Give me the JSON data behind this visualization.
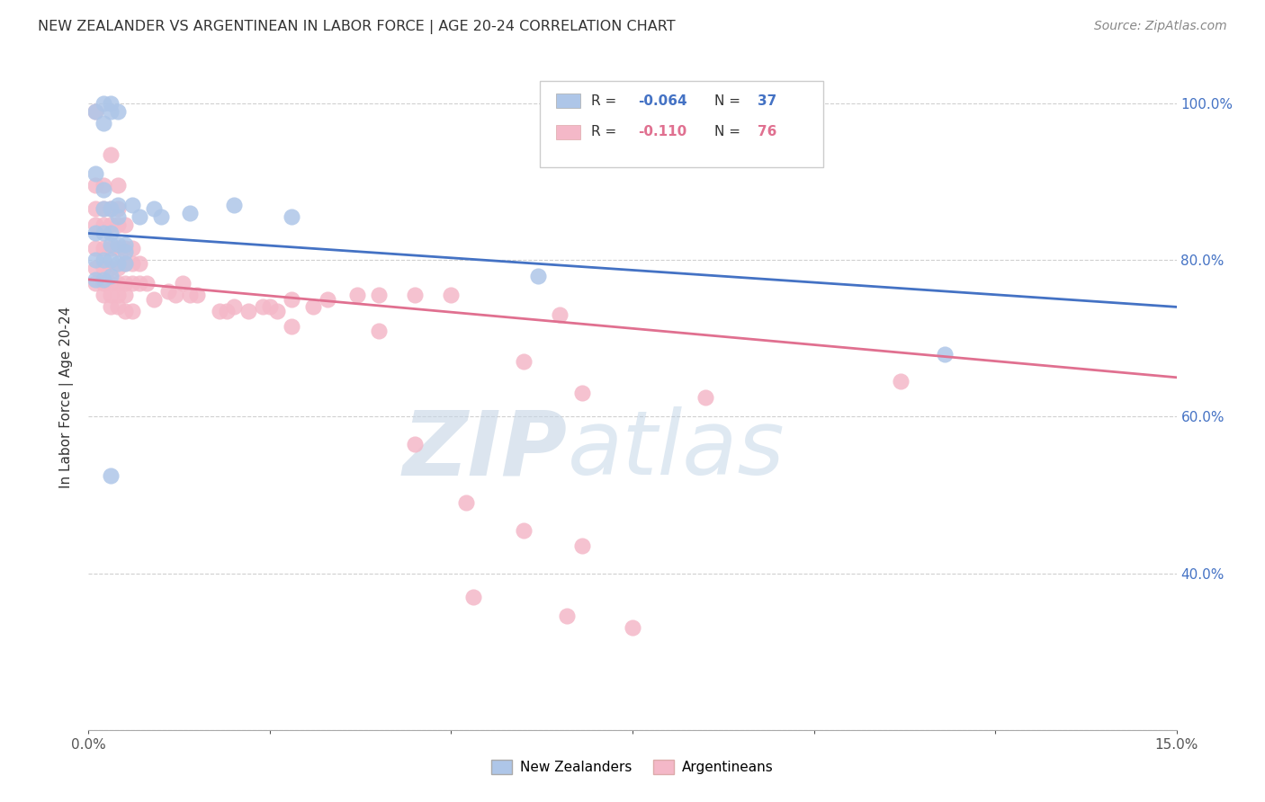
{
  "title": "NEW ZEALANDER VS ARGENTINEAN IN LABOR FORCE | AGE 20-24 CORRELATION CHART",
  "source": "Source: ZipAtlas.com",
  "ylabel": "In Labor Force | Age 20-24",
  "x_min": 0.0,
  "x_max": 0.15,
  "y_min": 0.2,
  "y_max": 1.05,
  "blue_color": "#aec6e8",
  "pink_color": "#f4b8c8",
  "blue_line_color": "#4472c4",
  "pink_line_color": "#e07090",
  "blue_scatter": [
    [
      0.001,
      0.99
    ],
    [
      0.002,
      1.0
    ],
    [
      0.002,
      0.975
    ],
    [
      0.003,
      1.0
    ],
    [
      0.003,
      0.99
    ],
    [
      0.004,
      0.99
    ],
    [
      0.001,
      0.91
    ],
    [
      0.002,
      0.89
    ],
    [
      0.002,
      0.865
    ],
    [
      0.003,
      0.865
    ],
    [
      0.004,
      0.87
    ],
    [
      0.004,
      0.855
    ],
    [
      0.001,
      0.835
    ],
    [
      0.002,
      0.835
    ],
    [
      0.003,
      0.835
    ],
    [
      0.003,
      0.82
    ],
    [
      0.004,
      0.82
    ],
    [
      0.005,
      0.82
    ],
    [
      0.005,
      0.81
    ],
    [
      0.001,
      0.8
    ],
    [
      0.002,
      0.8
    ],
    [
      0.003,
      0.8
    ],
    [
      0.004,
      0.795
    ],
    [
      0.005,
      0.795
    ],
    [
      0.001,
      0.775
    ],
    [
      0.002,
      0.775
    ],
    [
      0.003,
      0.78
    ],
    [
      0.006,
      0.87
    ],
    [
      0.007,
      0.855
    ],
    [
      0.009,
      0.865
    ],
    [
      0.01,
      0.855
    ],
    [
      0.014,
      0.86
    ],
    [
      0.02,
      0.87
    ],
    [
      0.028,
      0.855
    ],
    [
      0.062,
      0.78
    ],
    [
      0.118,
      0.68
    ],
    [
      0.003,
      0.525
    ]
  ],
  "pink_scatter": [
    [
      0.001,
      0.99
    ],
    [
      0.003,
      0.935
    ],
    [
      0.001,
      0.895
    ],
    [
      0.002,
      0.895
    ],
    [
      0.004,
      0.895
    ],
    [
      0.001,
      0.865
    ],
    [
      0.002,
      0.865
    ],
    [
      0.003,
      0.865
    ],
    [
      0.004,
      0.865
    ],
    [
      0.001,
      0.845
    ],
    [
      0.002,
      0.845
    ],
    [
      0.003,
      0.845
    ],
    [
      0.004,
      0.845
    ],
    [
      0.005,
      0.845
    ],
    [
      0.001,
      0.815
    ],
    [
      0.002,
      0.815
    ],
    [
      0.003,
      0.815
    ],
    [
      0.004,
      0.815
    ],
    [
      0.005,
      0.815
    ],
    [
      0.006,
      0.815
    ],
    [
      0.001,
      0.79
    ],
    [
      0.002,
      0.79
    ],
    [
      0.003,
      0.79
    ],
    [
      0.004,
      0.79
    ],
    [
      0.005,
      0.795
    ],
    [
      0.006,
      0.795
    ],
    [
      0.007,
      0.795
    ],
    [
      0.001,
      0.77
    ],
    [
      0.002,
      0.77
    ],
    [
      0.003,
      0.77
    ],
    [
      0.004,
      0.77
    ],
    [
      0.005,
      0.77
    ],
    [
      0.006,
      0.77
    ],
    [
      0.007,
      0.77
    ],
    [
      0.008,
      0.77
    ],
    [
      0.002,
      0.755
    ],
    [
      0.003,
      0.755
    ],
    [
      0.004,
      0.755
    ],
    [
      0.005,
      0.755
    ],
    [
      0.003,
      0.74
    ],
    [
      0.004,
      0.74
    ],
    [
      0.005,
      0.735
    ],
    [
      0.006,
      0.735
    ],
    [
      0.009,
      0.75
    ],
    [
      0.011,
      0.76
    ],
    [
      0.012,
      0.755
    ],
    [
      0.013,
      0.77
    ],
    [
      0.014,
      0.755
    ],
    [
      0.015,
      0.755
    ],
    [
      0.018,
      0.735
    ],
    [
      0.019,
      0.735
    ],
    [
      0.02,
      0.74
    ],
    [
      0.022,
      0.735
    ],
    [
      0.024,
      0.74
    ],
    [
      0.025,
      0.74
    ],
    [
      0.026,
      0.735
    ],
    [
      0.028,
      0.75
    ],
    [
      0.031,
      0.74
    ],
    [
      0.033,
      0.75
    ],
    [
      0.037,
      0.755
    ],
    [
      0.04,
      0.755
    ],
    [
      0.045,
      0.755
    ],
    [
      0.05,
      0.755
    ],
    [
      0.065,
      0.73
    ],
    [
      0.112,
      0.645
    ],
    [
      0.028,
      0.715
    ],
    [
      0.04,
      0.71
    ],
    [
      0.06,
      0.67
    ],
    [
      0.068,
      0.63
    ],
    [
      0.085,
      0.625
    ],
    [
      0.045,
      0.565
    ],
    [
      0.052,
      0.49
    ],
    [
      0.06,
      0.455
    ],
    [
      0.068,
      0.435
    ],
    [
      0.053,
      0.37
    ],
    [
      0.066,
      0.345
    ],
    [
      0.075,
      0.33
    ]
  ],
  "blue_line_x": [
    0.0,
    0.15
  ],
  "blue_line_y": [
    0.834,
    0.74
  ],
  "pink_line_x": [
    0.0,
    0.15
  ],
  "pink_line_y": [
    0.775,
    0.65
  ],
  "watermark_zip": "ZIP",
  "watermark_atlas": "atlas",
  "background_color": "#ffffff",
  "grid_color": "#d0d0d0"
}
